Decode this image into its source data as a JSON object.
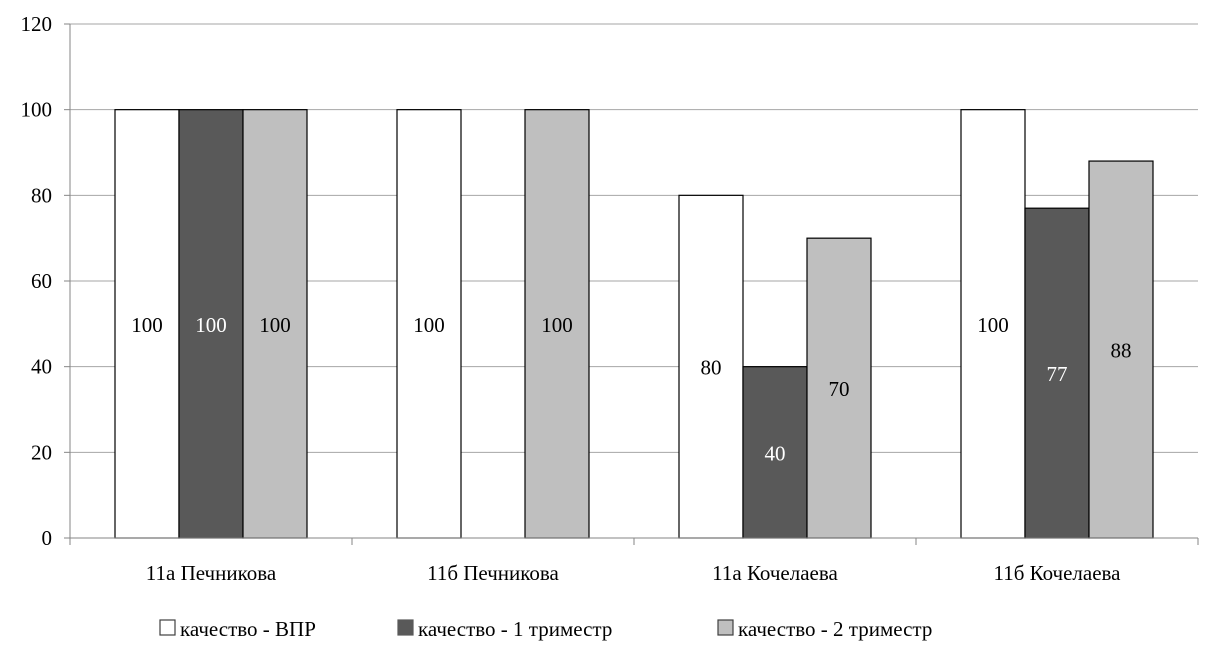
{
  "chart_data": {
    "type": "bar",
    "title": "",
    "xlabel": "",
    "ylabel": "",
    "ylim": [
      0,
      120
    ],
    "yticks": [
      0,
      20,
      40,
      60,
      80,
      100,
      120
    ],
    "grid": true,
    "legend_position": "bottom",
    "categories": [
      "11а Печникова",
      "11б Печникова",
      "11а Кочелаева",
      "11б Кочелаева"
    ],
    "series": [
      {
        "name": "качество - ВПР",
        "values": [
          100,
          100,
          80,
          100
        ],
        "labels": [
          "100",
          "100",
          "80",
          "100"
        ],
        "color": "#ffffff",
        "label_color": "#000000"
      },
      {
        "name": "качество - 1 триместр",
        "values": [
          100,
          0,
          40,
          77
        ],
        "labels": [
          "100",
          "",
          "40",
          "77"
        ],
        "color": "#595959",
        "label_color": "#ffffff"
      },
      {
        "name": "качество - 2 триместр",
        "values": [
          100,
          100,
          70,
          88
        ],
        "labels": [
          "100",
          "100",
          "70",
          "88"
        ],
        "color": "#bfbfbf",
        "label_color": "#000000"
      }
    ]
  }
}
